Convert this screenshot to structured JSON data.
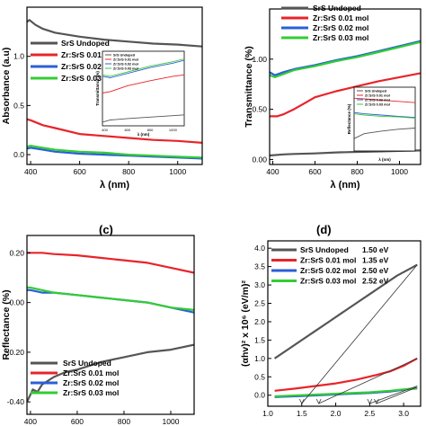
{
  "colors": {
    "undoped": "#555555",
    "zr001": "#e8242a",
    "zr002": "#2b5fd9",
    "zr003": "#33cc33"
  },
  "panel_letters": {
    "c": "(c)",
    "d": "(d)"
  },
  "chart_data": [
    {
      "id": "absorbance",
      "type": "line",
      "xlabel": "λ (nm)",
      "ylabel": "Absorbance (a.u)",
      "xlim": [
        385,
        1100
      ],
      "ylim": [
        -0.1,
        1.5
      ],
      "xticks": [
        400,
        600,
        800,
        1000
      ],
      "yticks": [
        0.0,
        0.5,
        1.0
      ],
      "ytick_labels": [
        "0.0",
        "0.5",
        "1.0"
      ],
      "legend": "top-right",
      "series": [
        {
          "name": "SrS Undoped",
          "color_key": "undoped",
          "x": [
            385,
            395,
            420,
            450,
            500,
            600,
            700,
            800,
            900,
            1000,
            1100
          ],
          "y": [
            1.35,
            1.37,
            1.32,
            1.28,
            1.24,
            1.2,
            1.17,
            1.15,
            1.13,
            1.12,
            1.1
          ]
        },
        {
          "name": "Zr:SrS 0.01 mol",
          "color_key": "zr001",
          "x": [
            385,
            400,
            450,
            500,
            600,
            700,
            800,
            900,
            1000,
            1100
          ],
          "y": [
            0.36,
            0.35,
            0.3,
            0.27,
            0.21,
            0.19,
            0.17,
            0.15,
            0.14,
            0.12
          ]
        },
        {
          "name": "Zr:SrS 0.02 mol",
          "color_key": "zr002",
          "x": [
            385,
            400,
            450,
            500,
            600,
            700,
            800,
            900,
            1000,
            1100
          ],
          "y": [
            0.06,
            0.07,
            0.05,
            0.03,
            0.01,
            0.0,
            -0.01,
            -0.02,
            -0.03,
            -0.04
          ]
        },
        {
          "name": "Zr:SrS 0.03 mol",
          "color_key": "zr003",
          "x": [
            385,
            400,
            450,
            500,
            600,
            700,
            800,
            900,
            1000,
            1100
          ],
          "y": [
            0.08,
            0.09,
            0.07,
            0.05,
            0.03,
            0.02,
            0.0,
            -0.01,
            -0.02,
            -0.03
          ]
        }
      ],
      "inset": {
        "xlabel": "λ (nm)",
        "ylabel": "Transmittance (%)",
        "xlim": [
          380,
          1100
        ],
        "ylim": [
          0,
          1
        ],
        "xticks": [
          400,
          600,
          800,
          1000
        ],
        "legend_names": [
          "SrS Undoped",
          "Zr:SrS 0.01 mol",
          "Zr:SrS 0.02 mol",
          "Zr:SrS 0.03 mol"
        ],
        "series": [
          {
            "color_key": "undoped",
            "x": [
              380,
              450,
              600,
              800,
              1000,
              1100
            ],
            "y": [
              0.05,
              0.08,
              0.1,
              0.12,
              0.14,
              0.15
            ]
          },
          {
            "color_key": "zr001",
            "x": [
              380,
              450,
              600,
              800,
              1000,
              1100
            ],
            "y": [
              0.45,
              0.47,
              0.55,
              0.62,
              0.68,
              0.7
            ]
          },
          {
            "color_key": "zr002",
            "x": [
              380,
              450,
              600,
              800,
              1000,
              1100
            ],
            "y": [
              0.68,
              0.66,
              0.72,
              0.8,
              0.86,
              0.9
            ]
          },
          {
            "color_key": "zr003",
            "x": [
              380,
              450,
              600,
              800,
              1000,
              1100
            ],
            "y": [
              0.7,
              0.68,
              0.74,
              0.82,
              0.88,
              0.92
            ]
          }
        ]
      }
    },
    {
      "id": "transmittance",
      "type": "line",
      "xlabel": "λ (nm)",
      "ylabel": "Transmittance (%)",
      "xlim": [
        385,
        1100
      ],
      "ylim": [
        -0.05,
        1.5
      ],
      "xticks": [
        400,
        600,
        800,
        1000
      ],
      "yticks": [
        0.0,
        0.5,
        1.0
      ],
      "ytick_labels": [
        "0.00",
        "0.50",
        "1.00"
      ],
      "legend": "top-left",
      "series": [
        {
          "name": "SrS Undoped",
          "color_key": "undoped",
          "x": [
            385,
            450,
            500,
            600,
            700,
            800,
            900,
            1000,
            1100
          ],
          "y": [
            0.04,
            0.05,
            0.055,
            0.06,
            0.07,
            0.075,
            0.08,
            0.085,
            0.09
          ]
        },
        {
          "name": "Zr:SrS 0.01 mol",
          "color_key": "zr001",
          "x": [
            385,
            420,
            450,
            500,
            550,
            600,
            700,
            800,
            900,
            1000,
            1100
          ],
          "y": [
            0.43,
            0.43,
            0.45,
            0.5,
            0.56,
            0.62,
            0.68,
            0.73,
            0.78,
            0.82,
            0.86
          ]
        },
        {
          "name": "Zr:SrS 0.02 mol",
          "color_key": "zr002",
          "x": [
            385,
            410,
            450,
            500,
            600,
            700,
            800,
            900,
            1000,
            1100
          ],
          "y": [
            0.87,
            0.84,
            0.87,
            0.9,
            0.94,
            0.99,
            1.03,
            1.08,
            1.13,
            1.18
          ]
        },
        {
          "name": "Zr:SrS 0.03 mol",
          "color_key": "zr003",
          "x": [
            385,
            410,
            450,
            500,
            600,
            700,
            800,
            900,
            1000,
            1100
          ],
          "y": [
            0.84,
            0.82,
            0.85,
            0.89,
            0.93,
            0.98,
            1.02,
            1.07,
            1.12,
            1.17
          ]
        }
      ],
      "inset": {
        "xlabel": "λ (nm)",
        "ylabel": "Reflectance (%)",
        "xlim": [
          380,
          1100
        ],
        "ylim": [
          0,
          1
        ],
        "xticks": [],
        "legend_names": [
          "SrS Undoped",
          "Zr:SrS 0.01 mol",
          "Zr:SrS 0.02 mol",
          "Zr:SrS 0.03 mol"
        ],
        "series": [
          {
            "color_key": "undoped",
            "x": [
              380,
              500,
              700,
              900,
              1100
            ],
            "y": [
              0.2,
              0.28,
              0.32,
              0.35,
              0.37
            ]
          },
          {
            "color_key": "zr001",
            "x": [
              380,
              500,
              700,
              900,
              1100
            ],
            "y": [
              0.85,
              0.84,
              0.82,
              0.8,
              0.78
            ]
          },
          {
            "color_key": "zr002",
            "x": [
              380,
              500,
              700,
              900,
              1100
            ],
            "y": [
              0.62,
              0.6,
              0.58,
              0.56,
              0.54
            ]
          },
          {
            "color_key": "zr003",
            "x": [
              380,
              500,
              700,
              900,
              1100
            ],
            "y": [
              0.6,
              0.58,
              0.56,
              0.55,
              0.53
            ]
          }
        ]
      }
    },
    {
      "id": "reflectance",
      "type": "line",
      "xlabel": "λ (nm)",
      "ylabel": "Reflectance (%)",
      "xlim": [
        385,
        1100
      ],
      "ylim": [
        -0.45,
        0.27
      ],
      "xticks": [
        400,
        600,
        800,
        1000
      ],
      "yticks": [
        -0.4,
        -0.2,
        0.0,
        0.2
      ],
      "ytick_labels": [
        "-0.40",
        "-0.20",
        "0.00",
        "0.20"
      ],
      "legend": "middle-left",
      "series": [
        {
          "name": "SrS Undoped",
          "color_key": "undoped",
          "x": [
            385,
            395,
            410,
            430,
            450,
            500,
            550,
            600,
            700,
            800,
            900,
            1000,
            1100
          ],
          "y": [
            -0.4,
            -0.38,
            -0.35,
            -0.36,
            -0.33,
            -0.3,
            -0.28,
            -0.27,
            -0.24,
            -0.22,
            -0.2,
            -0.19,
            -0.17
          ]
        },
        {
          "name": "Zr:SrS 0.01 mol",
          "color_key": "zr001",
          "x": [
            385,
            450,
            500,
            600,
            700,
            800,
            900,
            1000,
            1100
          ],
          "y": [
            0.2,
            0.2,
            0.195,
            0.19,
            0.18,
            0.17,
            0.16,
            0.14,
            0.12
          ]
        },
        {
          "name": "Zr:SrS 0.02 mol",
          "color_key": "zr002",
          "x": [
            385,
            400,
            450,
            500,
            600,
            700,
            800,
            900,
            1000,
            1100
          ],
          "y": [
            0.05,
            0.05,
            0.04,
            0.04,
            0.03,
            0.02,
            0.01,
            0.0,
            -0.02,
            -0.04
          ]
        },
        {
          "name": "Zr:SrS 0.03 mol",
          "color_key": "zr003",
          "x": [
            385,
            400,
            450,
            500,
            600,
            700,
            800,
            900,
            1000,
            1100
          ],
          "y": [
            0.06,
            0.06,
            0.05,
            0.04,
            0.03,
            0.02,
            0.01,
            0.0,
            -0.02,
            -0.03
          ]
        }
      ]
    },
    {
      "id": "tauc",
      "type": "line",
      "xlabel": "",
      "ylabel": "(αhv)² x 10⁶ (eV/m)²",
      "xlim": [
        1.0,
        3.25
      ],
      "ylim": [
        -0.3,
        4.2
      ],
      "xticks": [
        1.0,
        1.5,
        2.0,
        2.5,
        3.0
      ],
      "xtick_labels": [
        "1.0",
        "1.5",
        "2.0",
        "2.5",
        "3.0"
      ],
      "yticks": [
        0.0,
        0.5,
        1.0,
        1.5,
        2.0,
        2.5,
        3.0,
        3.5,
        4.0
      ],
      "ytick_labels": [
        "0.0",
        "0.5",
        "1.0",
        "1.5",
        "2.0",
        "2.5",
        "3.0",
        "3.5",
        "4.0"
      ],
      "legend": "top-left",
      "band_gaps": [
        "1.50 eV",
        "1.35 eV",
        "2.50 eV",
        "2.52 eV"
      ],
      "series": [
        {
          "name": "SrS Undoped",
          "color_key": "undoped",
          "x": [
            1.1,
            1.3,
            1.5,
            1.7,
            1.9,
            2.1,
            2.3,
            2.5,
            2.7,
            2.9,
            3.1,
            3.2
          ],
          "y": [
            1.0,
            1.25,
            1.5,
            1.75,
            2.0,
            2.25,
            2.5,
            2.75,
            3.0,
            3.25,
            3.45,
            3.55
          ]
        },
        {
          "name": "Zr:SrS 0.01 mol",
          "color_key": "zr001",
          "x": [
            1.1,
            1.4,
            1.7,
            2.0,
            2.3,
            2.6,
            2.8,
            3.0,
            3.2
          ],
          "y": [
            0.12,
            0.18,
            0.25,
            0.32,
            0.42,
            0.55,
            0.65,
            0.8,
            1.0
          ]
        },
        {
          "name": "Zr:SrS 0.02 mol",
          "color_key": "zr002",
          "x": [
            1.1,
            1.5,
            2.0,
            2.5,
            2.8,
            3.0,
            3.2
          ],
          "y": [
            -0.05,
            -0.02,
            0.02,
            0.06,
            0.1,
            0.15,
            0.2
          ]
        },
        {
          "name": "Zr:SrS 0.03 mol",
          "color_key": "zr003",
          "x": [
            1.1,
            1.5,
            2.0,
            2.5,
            2.8,
            3.0,
            3.2
          ],
          "y": [
            -0.03,
            0.0,
            0.04,
            0.08,
            0.12,
            0.16,
            0.18
          ]
        }
      ],
      "tangents": [
        {
          "color_key": "undoped",
          "from": [
            3.2,
            3.55
          ],
          "to": [
            1.5,
            -0.3
          ]
        },
        {
          "color_key": "undoped",
          "from": [
            3.2,
            1.0
          ],
          "to": [
            1.75,
            -0.3
          ]
        },
        {
          "color_key": "undoped",
          "from": [
            3.2,
            0.25
          ],
          "to": [
            2.5,
            -0.3
          ]
        },
        {
          "color_key": "undoped",
          "from": [
            3.2,
            0.22
          ],
          "to": [
            2.6,
            -0.3
          ]
        }
      ]
    }
  ]
}
